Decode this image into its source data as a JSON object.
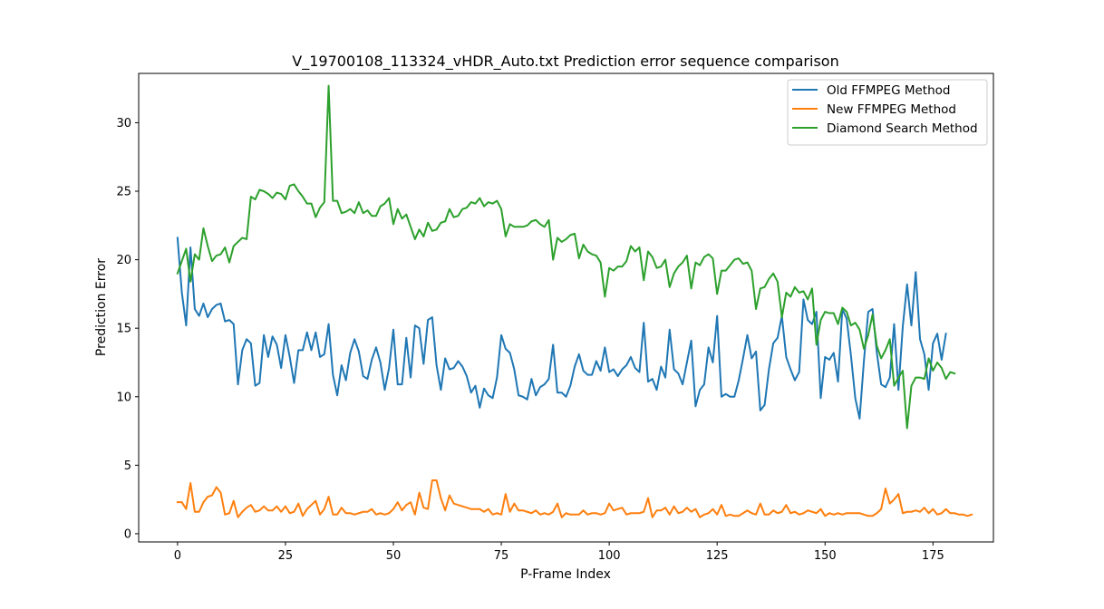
{
  "chart_data": {
    "type": "line",
    "title": "V_19700108_113324_vHDR_Auto.txt Prediction error sequence comparison",
    "xlabel": "P-Frame Index",
    "ylabel": "Prediction Error",
    "xlim": [
      -9,
      189
    ],
    "ylim": [
      -0.6,
      33.6
    ],
    "xticks": [
      0,
      25,
      50,
      75,
      100,
      125,
      150,
      175
    ],
    "yticks": [
      0,
      5,
      10,
      15,
      20,
      25,
      30
    ],
    "grid": false,
    "legend_position": "upper right",
    "series": [
      {
        "name": "Old FFMPEG Method",
        "color": "#1f77b4",
        "values": [
          21.6,
          17.6,
          15.2,
          20.9,
          16.4,
          15.9,
          16.8,
          15.8,
          16.4,
          16.7,
          16.8,
          15.5,
          15.6,
          15.3,
          10.9,
          13.4,
          14.2,
          13.9,
          10.8,
          11.0,
          14.5,
          12.9,
          14.4,
          13.8,
          12.1,
          14.5,
          12.9,
          11.0,
          13.4,
          13.4,
          14.7,
          13.4,
          14.7,
          12.9,
          13.1,
          15.3,
          11.6,
          10.1,
          12.3,
          11.2,
          13.2,
          14.2,
          13.3,
          11.5,
          11.3,
          12.7,
          13.6,
          12.5,
          10.5,
          12.1,
          14.9,
          10.9,
          10.9,
          14.3,
          11.4,
          15.2,
          15.0,
          12.4,
          15.6,
          15.8,
          12.3,
          10.5,
          12.8,
          12.0,
          12.1,
          12.6,
          12.2,
          11.5,
          10.3,
          10.8,
          9.2,
          10.6,
          10.1,
          9.9,
          11.4,
          14.5,
          13.5,
          13.2,
          12.0,
          10.1,
          10.0,
          9.8,
          11.3,
          10.1,
          10.7,
          10.9,
          11.3,
          13.8,
          10.3,
          10.3,
          10.0,
          10.8,
          12.2,
          13.1,
          11.9,
          11.6,
          11.6,
          12.6,
          11.9,
          13.6,
          11.8,
          12.0,
          11.5,
          12.0,
          12.3,
          12.9,
          12.1,
          11.8,
          15.4,
          11.1,
          11.3,
          10.5,
          12.2,
          11.4,
          14.9,
          12.0,
          11.7,
          10.9,
          12.5,
          14.1,
          9.3,
          10.5,
          10.9,
          13.6,
          12.5,
          15.9,
          10.0,
          10.2,
          10.0,
          10.0,
          11.2,
          12.8,
          14.5,
          12.8,
          13.3,
          9.0,
          9.4,
          12.0,
          13.9,
          14.3,
          15.9,
          12.9,
          12.0,
          11.2,
          11.8,
          17.1,
          15.6,
          15.3,
          16.2,
          9.9,
          12.9,
          12.7,
          13.2,
          11.1,
          16.4,
          15.7,
          13.0,
          9.9,
          8.4,
          12.6,
          16.2,
          16.4,
          13.2,
          10.9,
          10.7,
          11.4,
          15.3,
          10.5,
          15.1,
          18.2,
          15.2,
          19.1,
          14.2,
          13.1,
          10.5,
          13.9,
          14.6,
          12.7,
          14.6
        ]
      },
      {
        "name": "New FFMPEG Method",
        "color": "#ff7f0e",
        "values": [
          2.3,
          2.3,
          1.8,
          3.7,
          1.6,
          1.6,
          2.3,
          2.7,
          2.8,
          3.4,
          3.0,
          1.4,
          1.5,
          2.4,
          1.2,
          1.6,
          1.9,
          2.1,
          1.6,
          1.7,
          2.0,
          1.7,
          1.7,
          2.0,
          1.6,
          2.0,
          1.5,
          1.6,
          2.2,
          1.3,
          1.8,
          2.1,
          2.4,
          1.4,
          1.8,
          2.7,
          1.4,
          1.4,
          1.9,
          1.5,
          1.5,
          1.4,
          1.5,
          1.6,
          1.6,
          1.8,
          1.4,
          1.5,
          1.4,
          1.5,
          1.8,
          2.3,
          1.7,
          2.1,
          2.3,
          1.4,
          3.0,
          1.9,
          1.8,
          3.9,
          3.9,
          2.6,
          1.7,
          2.8,
          2.2,
          2.1,
          2.0,
          1.9,
          1.8,
          1.8,
          1.8,
          1.6,
          1.8,
          1.4,
          1.5,
          1.4,
          2.9,
          1.6,
          2.2,
          1.7,
          1.7,
          1.6,
          1.5,
          1.7,
          1.4,
          1.5,
          1.4,
          1.6,
          2.2,
          1.2,
          1.5,
          1.4,
          1.4,
          1.4,
          1.7,
          1.4,
          1.5,
          1.5,
          1.4,
          1.5,
          2.2,
          1.7,
          1.8,
          1.9,
          1.4,
          1.5,
          1.5,
          1.5,
          1.6,
          2.6,
          1.2,
          1.7,
          1.7,
          1.9,
          1.4,
          2.0,
          1.5,
          1.6,
          1.9,
          1.6,
          1.8,
          1.2,
          1.4,
          1.5,
          1.8,
          1.4,
          2.1,
          1.3,
          1.4,
          1.3,
          1.3,
          1.5,
          1.7,
          1.5,
          1.4,
          2.2,
          1.4,
          1.4,
          1.7,
          1.5,
          1.6,
          2.1,
          1.5,
          1.6,
          1.4,
          1.5,
          1.7,
          1.6,
          1.5,
          1.8,
          1.3,
          1.5,
          1.4,
          1.5,
          1.4,
          1.5,
          1.5,
          1.5,
          1.5,
          1.4,
          1.3,
          1.3,
          1.5,
          1.8,
          3.3,
          2.2,
          2.5,
          2.9,
          1.5,
          1.6,
          1.6,
          1.7,
          1.6,
          1.9,
          1.5,
          1.8,
          1.4,
          1.5,
          1.8,
          1.5,
          1.5,
          1.4,
          1.4,
          1.3,
          1.4
        ]
      },
      {
        "name": "Diamond Search Method",
        "color": "#2ca02c",
        "values": [
          19.0,
          19.9,
          20.8,
          18.4,
          20.4,
          20.0,
          22.3,
          21.0,
          19.9,
          20.3,
          20.4,
          20.9,
          19.8,
          21.0,
          21.3,
          21.6,
          21.5,
          24.6,
          24.4,
          25.1,
          25.0,
          24.8,
          24.5,
          24.9,
          24.8,
          24.4,
          25.4,
          25.5,
          25.0,
          24.6,
          24.1,
          24.1,
          23.1,
          23.8,
          24.2,
          32.7,
          24.3,
          24.3,
          23.4,
          23.5,
          23.7,
          23.4,
          24.2,
          23.4,
          23.6,
          23.2,
          23.2,
          23.9,
          24.1,
          24.5,
          22.6,
          23.7,
          23.0,
          23.3,
          22.4,
          21.5,
          22.2,
          21.7,
          22.7,
          22.1,
          22.2,
          22.7,
          22.8,
          23.7,
          23.1,
          23.2,
          23.7,
          23.8,
          24.2,
          24.1,
          24.5,
          23.9,
          24.2,
          24.1,
          24.3,
          23.7,
          21.7,
          22.6,
          22.4,
          22.4,
          22.4,
          22.5,
          22.8,
          22.9,
          22.6,
          22.4,
          22.9,
          20.0,
          21.6,
          21.3,
          21.5,
          21.8,
          21.9,
          20.1,
          21.1,
          20.6,
          20.4,
          20.3,
          19.8,
          17.3,
          19.4,
          19.2,
          19.5,
          19.5,
          19.9,
          21.0,
          20.6,
          20.9,
          18.5,
          20.6,
          20.2,
          19.4,
          19.5,
          20.0,
          18.0,
          19.0,
          19.5,
          19.8,
          20.3,
          17.9,
          19.8,
          19.6,
          20.2,
          20.4,
          20.1,
          17.5,
          19.2,
          19.2,
          19.6,
          20.0,
          20.1,
          19.7,
          19.8,
          19.2,
          16.4,
          17.9,
          18.0,
          18.6,
          19.0,
          18.4,
          15.8,
          17.6,
          17.3,
          18.0,
          17.6,
          17.7,
          17.1,
          17.9,
          13.8,
          15.6,
          16.2,
          16.1,
          16.1,
          15.3,
          16.5,
          16.2,
          15.2,
          15.4,
          14.9,
          13.5,
          14.5,
          16.0,
          13.7,
          12.8,
          13.4,
          14.2,
          10.8,
          11.4,
          11.9,
          7.7,
          10.8,
          11.4,
          11.4,
          11.3,
          12.8,
          11.9,
          12.5,
          12.1,
          11.3,
          11.8,
          11.7
        ]
      }
    ]
  }
}
